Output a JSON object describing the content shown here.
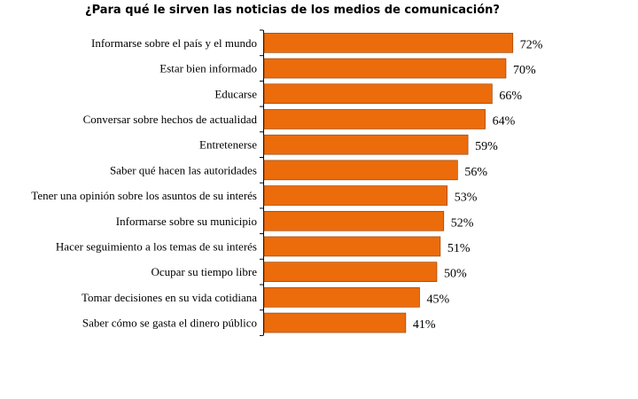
{
  "chart_data": {
    "type": "bar",
    "orientation": "horizontal",
    "title": "¿Para qué le sirven las noticias de los medios de comunicación?",
    "categories": [
      "Informarse sobre el país y el mundo",
      "Estar bien informado",
      "Educarse",
      "Conversar sobre hechos de actualidad",
      "Entretenerse",
      "Saber qué hacen las autoridades",
      "Tener una opinión sobre los asuntos de su interés",
      "Informarse sobre su municipio",
      "Hacer seguimiento a los temas de su interés",
      "Ocupar su tiempo libre",
      "Tomar decisiones en su vida cotidiana",
      "Saber cómo se gasta el dinero público"
    ],
    "values": [
      72,
      70,
      66,
      64,
      59,
      56,
      53,
      52,
      51,
      50,
      45,
      41
    ],
    "value_labels": [
      "72%",
      "70%",
      "66%",
      "64%",
      "59%",
      "56%",
      "53%",
      "52%",
      "51%",
      "50%",
      "45%",
      "41%"
    ],
    "xlabel": "",
    "ylabel": "",
    "bar_color": "#ec6c0c",
    "bar_border_color": "#8a3a00",
    "axis_color": "#000000",
    "grid": false,
    "legend": "none"
  }
}
